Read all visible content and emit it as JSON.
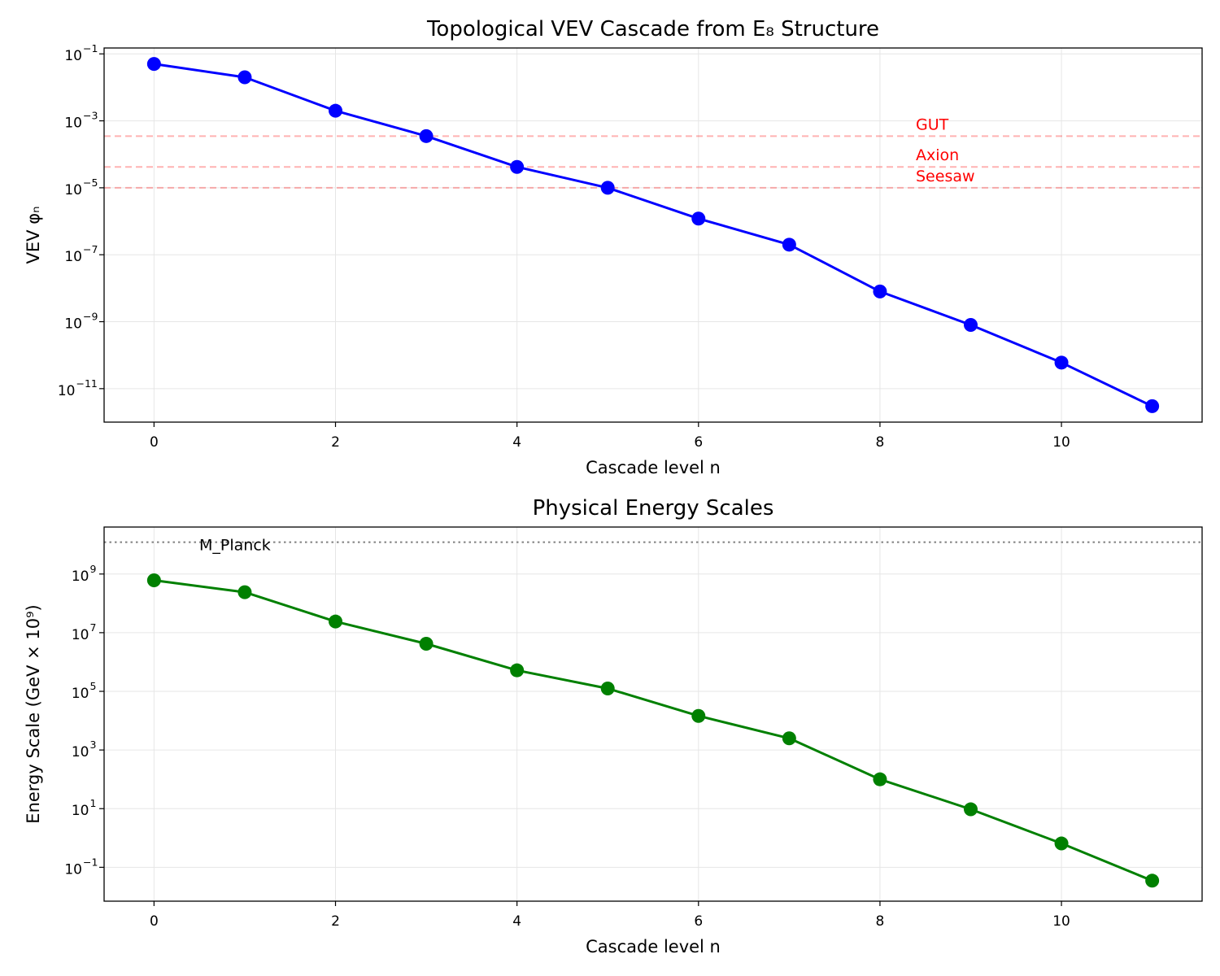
{
  "chart_data": [
    {
      "type": "line",
      "title": "Topological VEV Cascade from E₈ Structure",
      "xlabel": "Cascade level n",
      "ylabel": "VEV φₙ",
      "yscale": "log",
      "xlim": [
        -0.55,
        11.55
      ],
      "ylim": [
        1e-12,
        0.15
      ],
      "grid": true,
      "x_ticks": [
        0,
        2,
        4,
        6,
        8,
        10
      ],
      "y_ticks": [
        {
          "value": 1e-11,
          "base": "10",
          "exp": "−11"
        },
        {
          "value": 1e-09,
          "base": "10",
          "exp": "−9"
        },
        {
          "value": 1e-07,
          "base": "10",
          "exp": "−7"
        },
        {
          "value": 1e-05,
          "base": "10",
          "exp": "−5"
        },
        {
          "value": 0.001,
          "base": "10",
          "exp": "−3"
        },
        {
          "value": 0.1,
          "base": "10",
          "exp": "−1"
        }
      ],
      "series": [
        {
          "color": "#0000ff",
          "x": [
            0,
            1,
            2,
            3,
            4,
            5,
            6,
            7,
            8,
            9,
            10,
            11
          ],
          "y": [
            0.05,
            0.02,
            0.002,
            0.00035,
            4.2e-05,
            1e-05,
            1.2e-06,
            2e-07,
            8e-09,
            8e-10,
            6e-11,
            3e-12
          ]
        }
      ],
      "reference_lines": [
        {
          "label": "GUT",
          "value": 0.00035,
          "color": "#ff0000",
          "style": "dashed"
        },
        {
          "label": "Axion",
          "value": 4.2e-05,
          "color": "#ff0000",
          "style": "dashed"
        },
        {
          "label": "Seesaw",
          "value": 1e-05,
          "color": "#ff0000",
          "style": "dashed"
        }
      ]
    },
    {
      "type": "line",
      "title": "Physical Energy Scales",
      "xlabel": "Cascade level n",
      "ylabel": "Energy Scale (GeV × 10⁹)",
      "yscale": "log",
      "xlim": [
        -0.55,
        11.55
      ],
      "ylim": [
        0.007,
        40000000000.0
      ],
      "grid": true,
      "x_ticks": [
        0,
        2,
        4,
        6,
        8,
        10
      ],
      "y_ticks": [
        {
          "value": 0.1,
          "base": "10",
          "exp": "−1"
        },
        {
          "value": 10,
          "base": "10",
          "exp": "1"
        },
        {
          "value": 1000,
          "base": "10",
          "exp": "3"
        },
        {
          "value": 100000.0,
          "base": "10",
          "exp": "5"
        },
        {
          "value": 10000000.0,
          "base": "10",
          "exp": "7"
        },
        {
          "value": 1000000000.0,
          "base": "10",
          "exp": "9"
        }
      ],
      "series": [
        {
          "color": "#008000",
          "x": [
            0,
            1,
            2,
            3,
            4,
            5,
            6,
            7,
            8,
            9,
            10,
            11
          ],
          "y": [
            610000000,
            240000000,
            24000000,
            4200000,
            520000,
            125000,
            14500,
            2500,
            100,
            9.5,
            0.65,
            0.035
          ]
        }
      ],
      "reference_lines": [
        {
          "label": "M_Planck",
          "value": 12200000000,
          "color": "#808080",
          "style": "dotted"
        }
      ]
    }
  ]
}
